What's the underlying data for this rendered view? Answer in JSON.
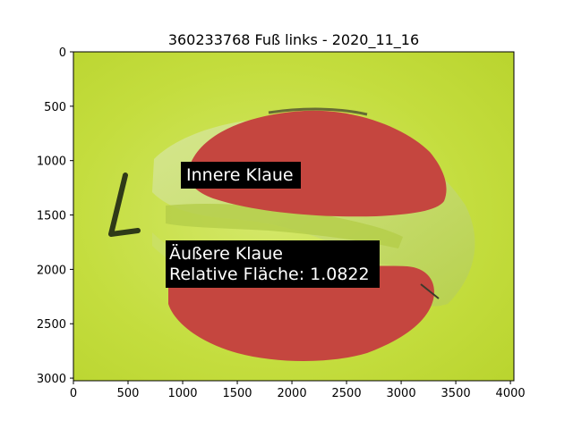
{
  "figure": {
    "title": "360233768 Fuß links - 2020_11_16"
  },
  "image_axes": {
    "x_ticks": [
      0,
      500,
      1000,
      1500,
      2000,
      2500,
      3000,
      3500,
      4000
    ],
    "y_ticks": [
      0,
      500,
      1000,
      1500,
      2000,
      2500,
      3000
    ],
    "x_range": [
      0,
      4032
    ],
    "y_range": [
      3024,
      0
    ]
  },
  "annotations": {
    "inner_label": "Innere Klaue",
    "outer_label_line1": "Äußere Klaue",
    "outer_label_line2": "Relative Fläche: 1.0822"
  },
  "colors": {
    "background_mat": "#c2dc3a",
    "claw_overlay": "#c5463f",
    "label_box": "#000000"
  }
}
